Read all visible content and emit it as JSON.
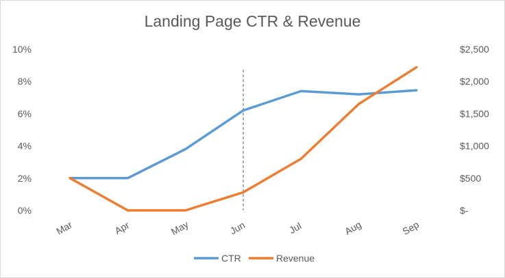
{
  "chart_data": {
    "type": "line",
    "title": "Landing Page CTR & Revenue",
    "categories": [
      "Mar",
      "Apr",
      "May",
      "Jun",
      "Jul",
      "Aug",
      "Sep"
    ],
    "series": [
      {
        "name": "CTR",
        "axis": "left",
        "color": "#5B9BD5",
        "values": [
          0.02,
          0.02,
          0.038,
          0.062,
          0.074,
          0.072,
          0.0745
        ]
      },
      {
        "name": "Revenue",
        "axis": "right",
        "color": "#ED7D31",
        "values": [
          500,
          0,
          0,
          280,
          800,
          1650,
          2220
        ]
      }
    ],
    "y_left": {
      "min": 0,
      "max": 0.1,
      "ticks": [
        0,
        0.02,
        0.04,
        0.06,
        0.08,
        0.1
      ],
      "tick_labels": [
        "0%",
        "2%",
        "4%",
        "6%",
        "8%",
        "10%"
      ]
    },
    "y_right": {
      "min": 0,
      "max": 2500,
      "ticks": [
        0,
        500,
        1000,
        1500,
        2000,
        2500
      ],
      "tick_labels": [
        "$-",
        "$500",
        "$1,000",
        "$1,500",
        "$2,000",
        "$2,500"
      ]
    },
    "marker_line": {
      "category": "Jun",
      "style": "dashed",
      "color": "#595959"
    },
    "grid": false,
    "legend_position": "bottom"
  }
}
